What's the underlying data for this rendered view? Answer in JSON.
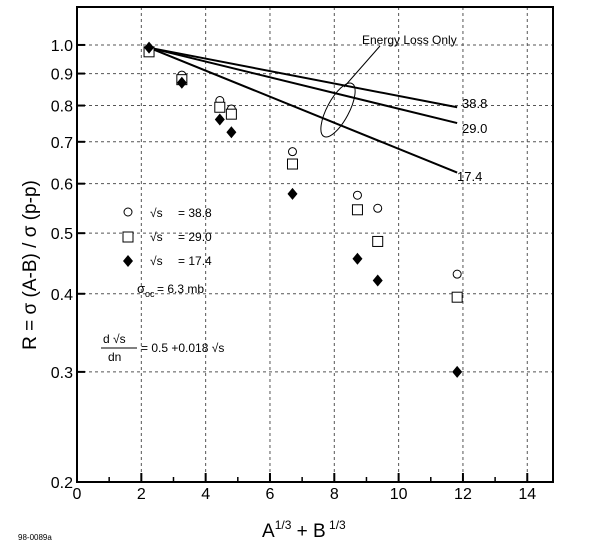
{
  "figure_id": "98-0089a",
  "chart_data": {
    "type": "scatter",
    "title": "",
    "xlabel": "A^{1/3} + B^{1/3}",
    "ylabel": "R = σ (A-B) / σ (p-p)",
    "xlim": [
      0,
      14.8
    ],
    "ylim": [
      0.2,
      1.15
    ],
    "y_scale": "log",
    "grid": true,
    "x_ticks": [
      0,
      2,
      4,
      6,
      8,
      10,
      12,
      14
    ],
    "y_ticks": [
      0.2,
      0.3,
      0.4,
      0.5,
      0.6,
      0.7,
      0.8,
      0.9,
      1.0
    ],
    "y_tick_labels": [
      "0.2",
      "0.3",
      "0.4",
      "0.5",
      "0.6",
      "0.7",
      "0.8",
      "0.9",
      "1.0"
    ],
    "legend_position": "center-left",
    "series": [
      {
        "name": "√s = 38.8",
        "legend_sqrt": "√s",
        "legend_value": "= 38.8",
        "marker": "circle",
        "x": [
          2.24,
          3.26,
          4.44,
          4.8,
          6.7,
          8.72,
          9.35,
          11.82
        ],
        "y": [
          0.985,
          0.895,
          0.815,
          0.79,
          0.675,
          0.575,
          0.548,
          0.43
        ]
      },
      {
        "name": "√s = 29.0",
        "legend_sqrt": "√s",
        "legend_value": "= 29.0",
        "marker": "square",
        "x": [
          2.24,
          3.26,
          4.44,
          4.8,
          6.7,
          8.72,
          9.35,
          11.82
        ],
        "y": [
          0.975,
          0.88,
          0.795,
          0.775,
          0.645,
          0.545,
          0.485,
          0.395
        ]
      },
      {
        "name": "√s = 17.4",
        "legend_sqrt": "√s",
        "legend_value": "= 17.4",
        "marker": "diamond",
        "x": [
          2.24,
          3.26,
          4.44,
          4.8,
          6.7,
          8.72,
          9.35,
          11.82
        ],
        "y": [
          0.99,
          0.87,
          0.76,
          0.725,
          0.578,
          0.455,
          0.42,
          0.3
        ]
      }
    ],
    "lines": [
      {
        "label": "38.8",
        "x": [
          2.24,
          11.82
        ],
        "y": [
          0.99,
          0.795
        ]
      },
      {
        "label": "29.0",
        "x": [
          2.24,
          11.82
        ],
        "y": [
          0.99,
          0.75
        ]
      },
      {
        "label": "17.4",
        "x": [
          2.24,
          11.82
        ],
        "y": [
          0.99,
          0.625
        ]
      }
    ],
    "annotations": {
      "energy_loss": "Energy Loss Only",
      "sigma_oc_symbol": "σ",
      "sigma_oc_sub": "oc",
      "sigma_oc_value": "= 6.3 mb",
      "formula_num": "d √s",
      "formula_den": "dn",
      "formula_rhs": "= 0.5 +0.018 √s"
    }
  }
}
